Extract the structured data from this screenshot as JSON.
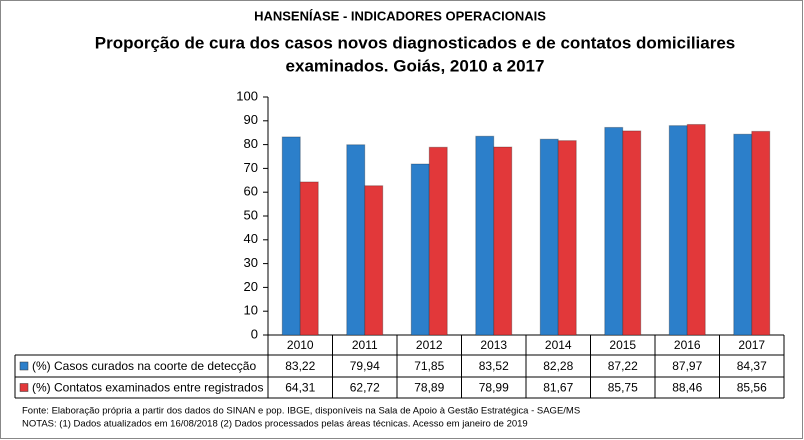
{
  "chart_data": {
    "type": "bar",
    "title": "HANSENÍASE - INDICADORES OPERACIONAIS",
    "subtitle": [
      "Proporção de cura dos casos novos diagnosticados e de contatos domiciliares",
      "examinados. Goiás, 2010 a 2017"
    ],
    "categories": [
      "2010",
      "2011",
      "2012",
      "2013",
      "2014",
      "2015",
      "2016",
      "2017"
    ],
    "series": [
      {
        "name": "(%) Casos curados na coorte de detecção",
        "color": "#2c7fca",
        "values": [
          83.22,
          79.94,
          71.85,
          83.52,
          82.28,
          87.22,
          87.97,
          84.37
        ],
        "value_labels": [
          "83,22",
          "79,94",
          "71,85",
          "83,52",
          "82,28",
          "87,22",
          "87,97",
          "84,37"
        ]
      },
      {
        "name": "(%) Contatos examinados entre registrados",
        "color": "#e2383a",
        "values": [
          64.31,
          62.72,
          78.89,
          78.99,
          81.67,
          85.75,
          88.46,
          85.56
        ],
        "value_labels": [
          "64,31",
          "62,72",
          "78,89",
          "78,99",
          "81,67",
          "85,75",
          "88,46",
          "85,56"
        ]
      }
    ],
    "ylim": [
      0,
      100
    ],
    "yticks": [
      0,
      10,
      20,
      30,
      40,
      50,
      60,
      70,
      80,
      90,
      100
    ],
    "notes": [
      "Fonte:  Elaboração própria a partir dos dados do SINAN  e  pop. IBGE, disponíveis na Sala de Apoio à Gestão Estratégica - SAGE/MS",
      "NOTAS: (1) Dados atualizados em 16/08/2018 (2) Dados processados pelas áreas técnicas. Acesso em janeiro de 2019"
    ]
  }
}
